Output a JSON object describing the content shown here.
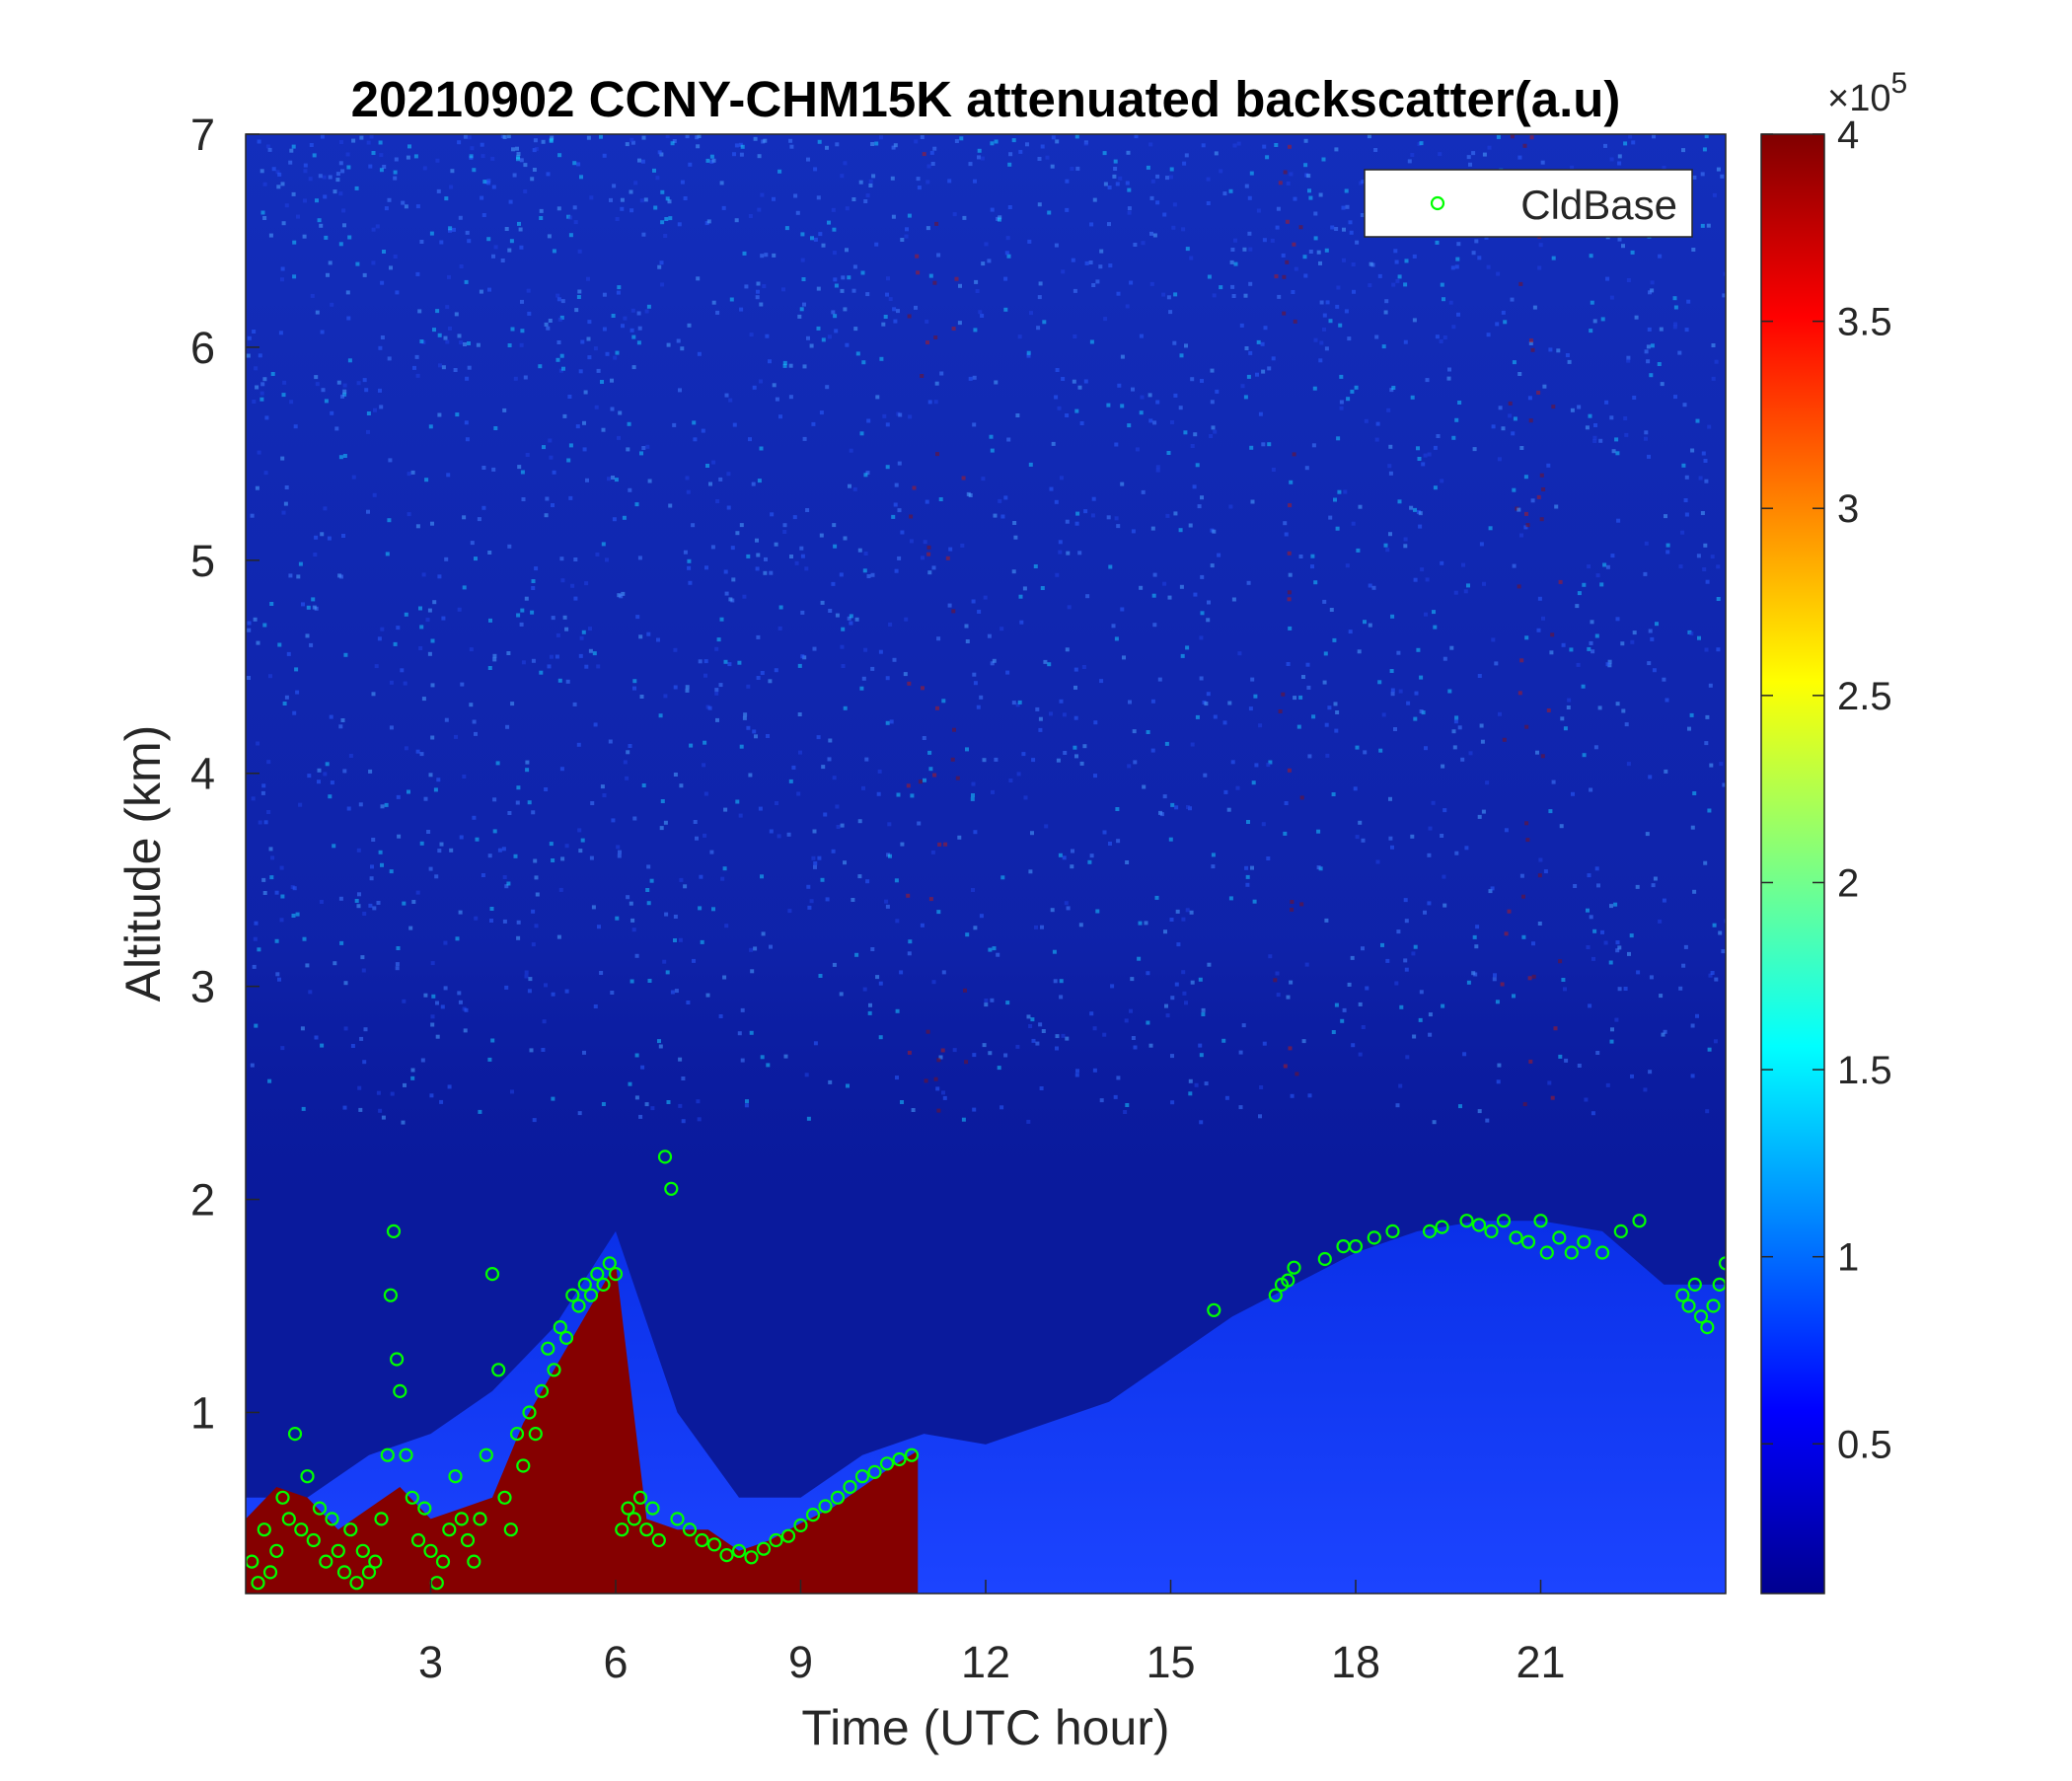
{
  "chart_data": {
    "type": "heatmap",
    "title": "20210902 CCNY-CHM15K attenuated backscatter(a.u)",
    "xlabel": "Time (UTC hour)",
    "ylabel": "Altitude (km)",
    "xlim": [
      0,
      24
    ],
    "ylim": [
      0.15,
      7
    ],
    "x_ticks": [
      "3",
      "6",
      "9",
      "12",
      "15",
      "18",
      "21"
    ],
    "y_ticks": [
      "1",
      "2",
      "3",
      "4",
      "5",
      "6",
      "7"
    ],
    "colorbar": {
      "range": [
        0.1,
        4
      ],
      "ticks": [
        "0.5",
        "1",
        "1.5",
        "2",
        "2.5",
        "3",
        "3.5",
        "4"
      ],
      "multiplier_base": "×10",
      "multiplier_exp": "5",
      "colormap": "jet"
    },
    "legend": {
      "label": "CldBase",
      "placement": "top-right",
      "marker": "open-circle",
      "color": "#00ff00"
    },
    "cloud_base_series": {
      "name": "CldBase",
      "points": [
        [
          0.1,
          0.3
        ],
        [
          0.2,
          0.2
        ],
        [
          0.3,
          0.45
        ],
        [
          0.4,
          0.25
        ],
        [
          0.5,
          0.35
        ],
        [
          0.6,
          0.6
        ],
        [
          0.7,
          0.5
        ],
        [
          0.8,
          0.9
        ],
        [
          0.9,
          0.45
        ],
        [
          1.0,
          0.7
        ],
        [
          1.1,
          0.4
        ],
        [
          1.2,
          0.55
        ],
        [
          1.3,
          0.3
        ],
        [
          1.4,
          0.5
        ],
        [
          1.5,
          0.35
        ],
        [
          1.6,
          0.25
        ],
        [
          1.7,
          0.45
        ],
        [
          1.8,
          0.2
        ],
        [
          1.9,
          0.35
        ],
        [
          2.0,
          0.25
        ],
        [
          2.1,
          0.3
        ],
        [
          2.2,
          0.5
        ],
        [
          2.3,
          0.8
        ],
        [
          2.35,
          1.55
        ],
        [
          2.4,
          1.85
        ],
        [
          2.45,
          1.25
        ],
        [
          2.5,
          1.1
        ],
        [
          2.6,
          0.8
        ],
        [
          2.7,
          0.6
        ],
        [
          2.8,
          0.4
        ],
        [
          2.9,
          0.55
        ],
        [
          3.0,
          0.35
        ],
        [
          3.1,
          0.2
        ],
        [
          3.2,
          0.3
        ],
        [
          3.3,
          0.45
        ],
        [
          3.4,
          0.7
        ],
        [
          3.5,
          0.5
        ],
        [
          3.6,
          0.4
        ],
        [
          3.7,
          0.3
        ],
        [
          3.8,
          0.5
        ],
        [
          3.9,
          0.8
        ],
        [
          4.0,
          1.65
        ],
        [
          4.1,
          1.2
        ],
        [
          4.2,
          0.6
        ],
        [
          4.3,
          0.45
        ],
        [
          4.4,
          0.9
        ],
        [
          4.5,
          0.75
        ],
        [
          4.6,
          1.0
        ],
        [
          4.7,
          0.9
        ],
        [
          4.8,
          1.1
        ],
        [
          4.9,
          1.3
        ],
        [
          5.0,
          1.2
        ],
        [
          5.1,
          1.4
        ],
        [
          5.2,
          1.35
        ],
        [
          5.3,
          1.55
        ],
        [
          5.4,
          1.5
        ],
        [
          5.5,
          1.6
        ],
        [
          5.6,
          1.55
        ],
        [
          5.7,
          1.65
        ],
        [
          5.8,
          1.6
        ],
        [
          5.9,
          1.7
        ],
        [
          6.0,
          1.65
        ],
        [
          6.1,
          0.45
        ],
        [
          6.2,
          0.55
        ],
        [
          6.3,
          0.5
        ],
        [
          6.4,
          0.6
        ],
        [
          6.5,
          0.45
        ],
        [
          6.6,
          0.55
        ],
        [
          6.7,
          0.4
        ],
        [
          6.8,
          2.2
        ],
        [
          6.9,
          2.05
        ],
        [
          7.0,
          0.5
        ],
        [
          7.2,
          0.45
        ],
        [
          7.4,
          0.4
        ],
        [
          7.6,
          0.38
        ],
        [
          7.8,
          0.33
        ],
        [
          8.0,
          0.35
        ],
        [
          8.2,
          0.32
        ],
        [
          8.4,
          0.36
        ],
        [
          8.6,
          0.4
        ],
        [
          8.8,
          0.42
        ],
        [
          9.0,
          0.47
        ],
        [
          9.2,
          0.52
        ],
        [
          9.4,
          0.56
        ],
        [
          9.6,
          0.6
        ],
        [
          9.8,
          0.65
        ],
        [
          10.0,
          0.7
        ],
        [
          10.2,
          0.72
        ],
        [
          10.4,
          0.76
        ],
        [
          10.6,
          0.78
        ],
        [
          10.8,
          0.8
        ],
        [
          15.7,
          1.48
        ],
        [
          16.7,
          1.55
        ],
        [
          16.8,
          1.6
        ],
        [
          16.9,
          1.62
        ],
        [
          17.0,
          1.68
        ],
        [
          17.5,
          1.72
        ],
        [
          17.8,
          1.78
        ],
        [
          18.0,
          1.78
        ],
        [
          18.3,
          1.82
        ],
        [
          18.6,
          1.85
        ],
        [
          19.2,
          1.85
        ],
        [
          19.4,
          1.87
        ],
        [
          19.8,
          1.9
        ],
        [
          20.0,
          1.88
        ],
        [
          20.2,
          1.85
        ],
        [
          20.4,
          1.9
        ],
        [
          20.6,
          1.82
        ],
        [
          20.8,
          1.8
        ],
        [
          21.0,
          1.9
        ],
        [
          21.1,
          1.75
        ],
        [
          21.3,
          1.82
        ],
        [
          21.5,
          1.75
        ],
        [
          21.7,
          1.8
        ],
        [
          22.0,
          1.75
        ],
        [
          22.3,
          1.85
        ],
        [
          22.6,
          1.9
        ],
        [
          23.3,
          1.55
        ],
        [
          23.4,
          1.5
        ],
        [
          23.5,
          1.6
        ],
        [
          23.6,
          1.45
        ],
        [
          23.7,
          1.4
        ],
        [
          23.8,
          1.5
        ],
        [
          23.9,
          1.6
        ],
        [
          24.0,
          1.7
        ]
      ]
    },
    "aerosol_layer": {
      "times": [
        0,
        1,
        2,
        3,
        4,
        5,
        6,
        7,
        8,
        9,
        10,
        11,
        12,
        13,
        14,
        15,
        16,
        17,
        18,
        19,
        20,
        21,
        22,
        23,
        24
      ],
      "top_km": [
        0.6,
        0.6,
        0.8,
        0.9,
        1.1,
        1.4,
        1.85,
        1.0,
        0.6,
        0.6,
        0.8,
        0.9,
        0.85,
        0.95,
        1.05,
        1.25,
        1.45,
        1.6,
        1.75,
        1.85,
        1.9,
        1.9,
        1.85,
        1.6,
        1.6
      ]
    },
    "dense_layer": {
      "times": [
        0,
        0.5,
        1,
        1.5,
        2,
        2.5,
        3,
        3.5,
        4,
        4.5,
        5,
        5.5,
        6,
        6.5,
        7,
        7.5,
        8,
        8.5,
        9,
        9.5,
        10,
        10.5,
        10.9
      ],
      "top_km": [
        0.5,
        0.65,
        0.6,
        0.45,
        0.55,
        0.65,
        0.5,
        0.55,
        0.6,
        0.95,
        1.2,
        1.45,
        1.7,
        0.5,
        0.45,
        0.45,
        0.35,
        0.4,
        0.48,
        0.55,
        0.65,
        0.75,
        0.82
      ]
    }
  }
}
